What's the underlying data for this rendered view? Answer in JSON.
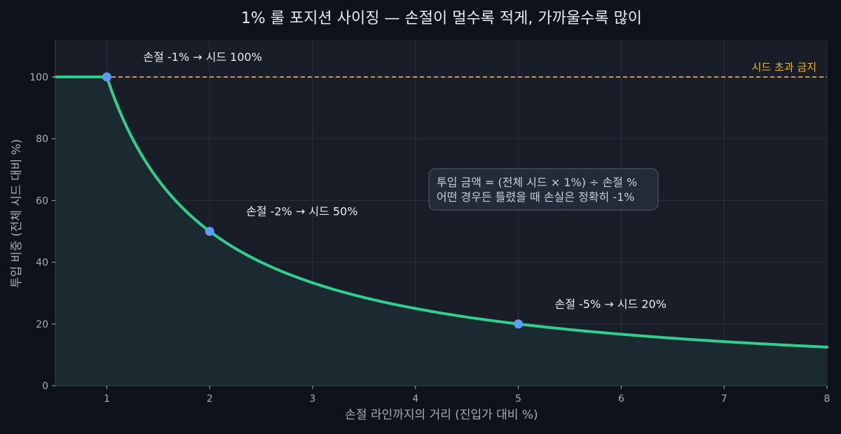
{
  "chart_data": {
    "type": "line",
    "title": "1% 룰 포지션 사이징 — 손절이 멀수록 적게, 가까울수록 많이",
    "xlabel": "손절 라인까지의 거리 (진입가 대비 %)",
    "ylabel": "투입 비중 (전체 시드 대비 %)",
    "xlim": [
      0.5,
      8
    ],
    "ylim": [
      0,
      112
    ],
    "xticks": [
      1,
      2,
      3,
      4,
      5,
      6,
      7,
      8
    ],
    "yticks": [
      0,
      20,
      40,
      60,
      80,
      100
    ],
    "grid": true,
    "series": [
      {
        "x": [
          0.5,
          0.75,
          1,
          1.25,
          1.5,
          1.75,
          2,
          2.5,
          3,
          3.5,
          4,
          4.5,
          5,
          5.5,
          6,
          6.5,
          7,
          7.5,
          8
        ],
        "y": [
          100,
          100,
          100,
          80,
          66.67,
          57.14,
          50,
          40,
          33.33,
          28.57,
          25,
          22.22,
          20,
          18.18,
          16.67,
          15.38,
          14.29,
          13.33,
          12.5
        ],
        "color": "#2fd08e"
      }
    ],
    "reference_line": {
      "y": 100,
      "label": "시드 초과 금지",
      "color": "#f2b630"
    },
    "highlight_points": [
      {
        "x": 1,
        "y": 100,
        "label": "손절 -1% → 시드 100%"
      },
      {
        "x": 2,
        "y": 50,
        "label": "손절 -2% → 시드 50%"
      },
      {
        "x": 5,
        "y": 20,
        "label": "손절 -5% → 시드 20%"
      }
    ],
    "annotation_box": {
      "lines": [
        "투입 금액 = (전체 시드 × 1%) ÷ 손절 %",
        "어떤 경우든 틀렸을 때 손실은 정확히 -1%"
      ]
    },
    "colors": {
      "background": "#0e131b",
      "plot_background": "#181d28",
      "fill": "#1b2a30",
      "point": "#5b9cf5",
      "grid": "#283040",
      "text": "#e8ecf1",
      "axis_text": "#a6adb8"
    }
  }
}
